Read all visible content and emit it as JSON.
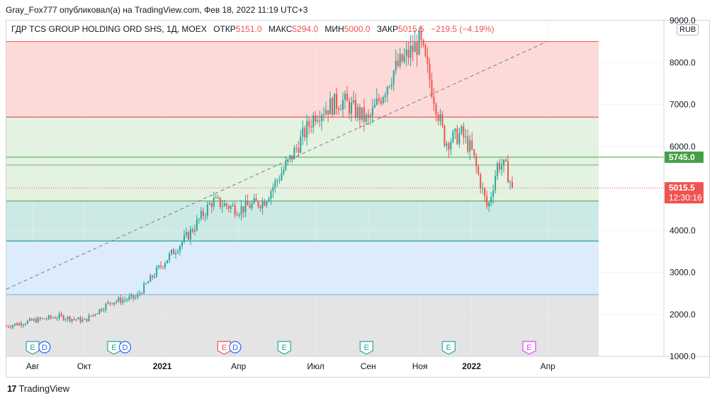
{
  "header": {
    "publisher_line": "Gray_Fox777 опубликовал(а) на TradingView.com, Фев 18, 2022 11:19 UTC+3"
  },
  "legend": {
    "symbol": "ГДР TCS GROUP HOLDING ORD SHS, 1Д, MOEX",
    "open_label": "ОТКР",
    "open_value": "5151.0",
    "high_label": "МАКС",
    "high_value": "5294.0",
    "low_label": "МИН",
    "low_value": "5000.0",
    "close_label": "ЗАКР",
    "close_value": "5015.5",
    "change": "−219.5 (−4.19%)"
  },
  "currency_button": "RUB",
  "footer": {
    "brand": "TradingView",
    "logo_glyph": "17"
  },
  "colors": {
    "up": "#26a69a",
    "down": "#ef5350",
    "zone_red": "#fdd9d7",
    "zone_green": "#e3f2e1",
    "zone_teal": "#cde9e5",
    "zone_blue": "#dcecfb",
    "zone_gray": "#e4e4e4"
  },
  "chart_data": {
    "type": "candlestick",
    "y_axis": {
      "min": 1000,
      "max": 9000,
      "ticks": [
        "1000.0",
        "2000.0",
        "3000.0",
        "4000.0",
        "5000.0",
        "6000.0",
        "7000.0",
        "8000.0",
        "9000.0"
      ]
    },
    "x_axis": {
      "labels": [
        {
          "text": "Авг",
          "date": "2020-08-01",
          "bold": false
        },
        {
          "text": "Окт",
          "date": "2020-10-01",
          "bold": false
        },
        {
          "text": "2021",
          "date": "2021-01-01",
          "bold": true
        },
        {
          "text": "Апр",
          "date": "2021-04-01",
          "bold": false
        },
        {
          "text": "Июл",
          "date": "2021-07-01",
          "bold": false
        },
        {
          "text": "Сен",
          "date": "2021-09-01",
          "bold": false
        },
        {
          "text": "Ноя",
          "date": "2021-11-01",
          "bold": false
        },
        {
          "text": "2022",
          "date": "2022-01-01",
          "bold": true
        },
        {
          "text": "Апр",
          "date": "2022-04-01",
          "bold": false
        }
      ],
      "start_date": "2020-07-01",
      "end_date": "2022-05-31"
    },
    "price_series": [
      {
        "date": "2020-07-01",
        "close": 1720
      },
      {
        "date": "2020-08-01",
        "close": 1850
      },
      {
        "date": "2020-09-01",
        "close": 1950
      },
      {
        "date": "2020-10-01",
        "close": 1850
      },
      {
        "date": "2020-11-01",
        "close": 2300
      },
      {
        "date": "2020-12-01",
        "close": 2400
      },
      {
        "date": "2021-01-01",
        "close": 3200
      },
      {
        "date": "2021-02-01",
        "close": 3900
      },
      {
        "date": "2021-03-01",
        "close": 4700
      },
      {
        "date": "2021-04-01",
        "close": 4500
      },
      {
        "date": "2021-05-01",
        "close": 4700
      },
      {
        "date": "2021-06-01",
        "close": 5700
      },
      {
        "date": "2021-07-01",
        "close": 6800
      },
      {
        "date": "2021-08-01",
        "close": 7100
      },
      {
        "date": "2021-09-01",
        "close": 6600
      },
      {
        "date": "2021-10-01",
        "close": 7800
      },
      {
        "date": "2021-11-01",
        "close": 8500
      },
      {
        "date": "2021-11-20",
        "close": 7000
      },
      {
        "date": "2021-12-01",
        "close": 6100
      },
      {
        "date": "2021-12-20",
        "close": 6300
      },
      {
        "date": "2022-01-01",
        "close": 5900
      },
      {
        "date": "2022-01-20",
        "close": 4500
      },
      {
        "date": "2022-02-01",
        "close": 5600
      },
      {
        "date": "2022-02-10",
        "close": 5500
      },
      {
        "date": "2022-02-18",
        "close": 5015.5
      }
    ],
    "horizontal_levels": [
      {
        "price": 8500,
        "color": "#ef5350"
      },
      {
        "price": 6700,
        "color": "#e53935"
      },
      {
        "price": 5745,
        "color": "#43a047"
      },
      {
        "price": 5560,
        "color": "#66bb6a"
      },
      {
        "price": 4700,
        "color": "#43a047"
      },
      {
        "price": 3750,
        "color": "#00897b"
      },
      {
        "price": 2470,
        "color": "#64b5f6"
      }
    ],
    "zones": [
      {
        "from": 6700,
        "to": 8500,
        "color_key": "zone_red"
      },
      {
        "from": 4700,
        "to": 6700,
        "color_key": "zone_green"
      },
      {
        "from": 3750,
        "to": 4700,
        "color_key": "zone_teal"
      },
      {
        "from": 2470,
        "to": 3750,
        "color_key": "zone_blue"
      },
      {
        "from": 1000,
        "to": 2470,
        "color_key": "zone_gray"
      }
    ],
    "trend_line": {
      "from": {
        "date": "2020-07-01",
        "price": 2600
      },
      "to": {
        "date": "2022-03-31",
        "price": 8500
      }
    },
    "price_labels": [
      {
        "price": 5745,
        "text": "5745.0",
        "color": "#43a047"
      },
      {
        "price": 5015.5,
        "text": "5015.5",
        "sub": "12:30:16",
        "color": "#ef5350"
      }
    ],
    "current_price": 5015.5,
    "events": [
      {
        "date": "2020-08-01",
        "kind": "E"
      },
      {
        "date": "2020-08-15",
        "kind": "D"
      },
      {
        "date": "2020-11-05",
        "kind": "E"
      },
      {
        "date": "2020-11-18",
        "kind": "D"
      },
      {
        "date": "2021-03-15",
        "kind": "E-red"
      },
      {
        "date": "2021-03-28",
        "kind": "D"
      },
      {
        "date": "2021-05-25",
        "kind": "E"
      },
      {
        "date": "2021-08-30",
        "kind": "E"
      },
      {
        "date": "2021-12-05",
        "kind": "E"
      },
      {
        "date": "2022-03-10",
        "kind": "E-future"
      }
    ]
  }
}
